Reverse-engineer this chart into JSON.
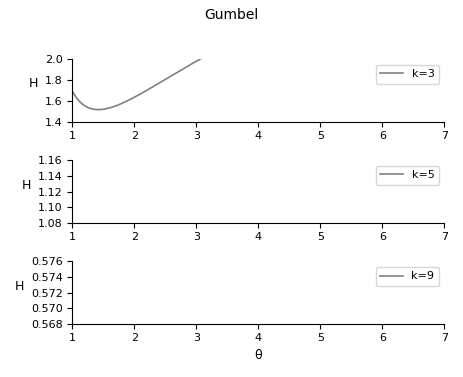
{
  "title": "Gumbel",
  "xlabel": "θ",
  "ylabel": "H",
  "x_start": 1.0,
  "x_end": 7.0,
  "x_ticks": [
    1,
    2,
    3,
    4,
    5,
    6,
    7
  ],
  "subplots": [
    {
      "k": 3,
      "label": "k=3",
      "ylim": [
        1.4,
        2.0
      ],
      "yticks": [
        1.4,
        1.6,
        1.8,
        2.0
      ]
    },
    {
      "k": 5,
      "label": "k=5",
      "ylim": [
        1.08,
        1.16
      ],
      "yticks": [
        1.08,
        1.1,
        1.12,
        1.14,
        1.16
      ]
    },
    {
      "k": 9,
      "label": "k=9",
      "ylim": [
        0.568,
        0.576
      ],
      "yticks": [
        0.568,
        0.57,
        0.572,
        0.574,
        0.576
      ]
    }
  ],
  "line_color": "#808080",
  "line_width": 1.2,
  "background_color": "#ffffff",
  "title_fontsize": 10,
  "label_fontsize": 9,
  "tick_fontsize": 8
}
